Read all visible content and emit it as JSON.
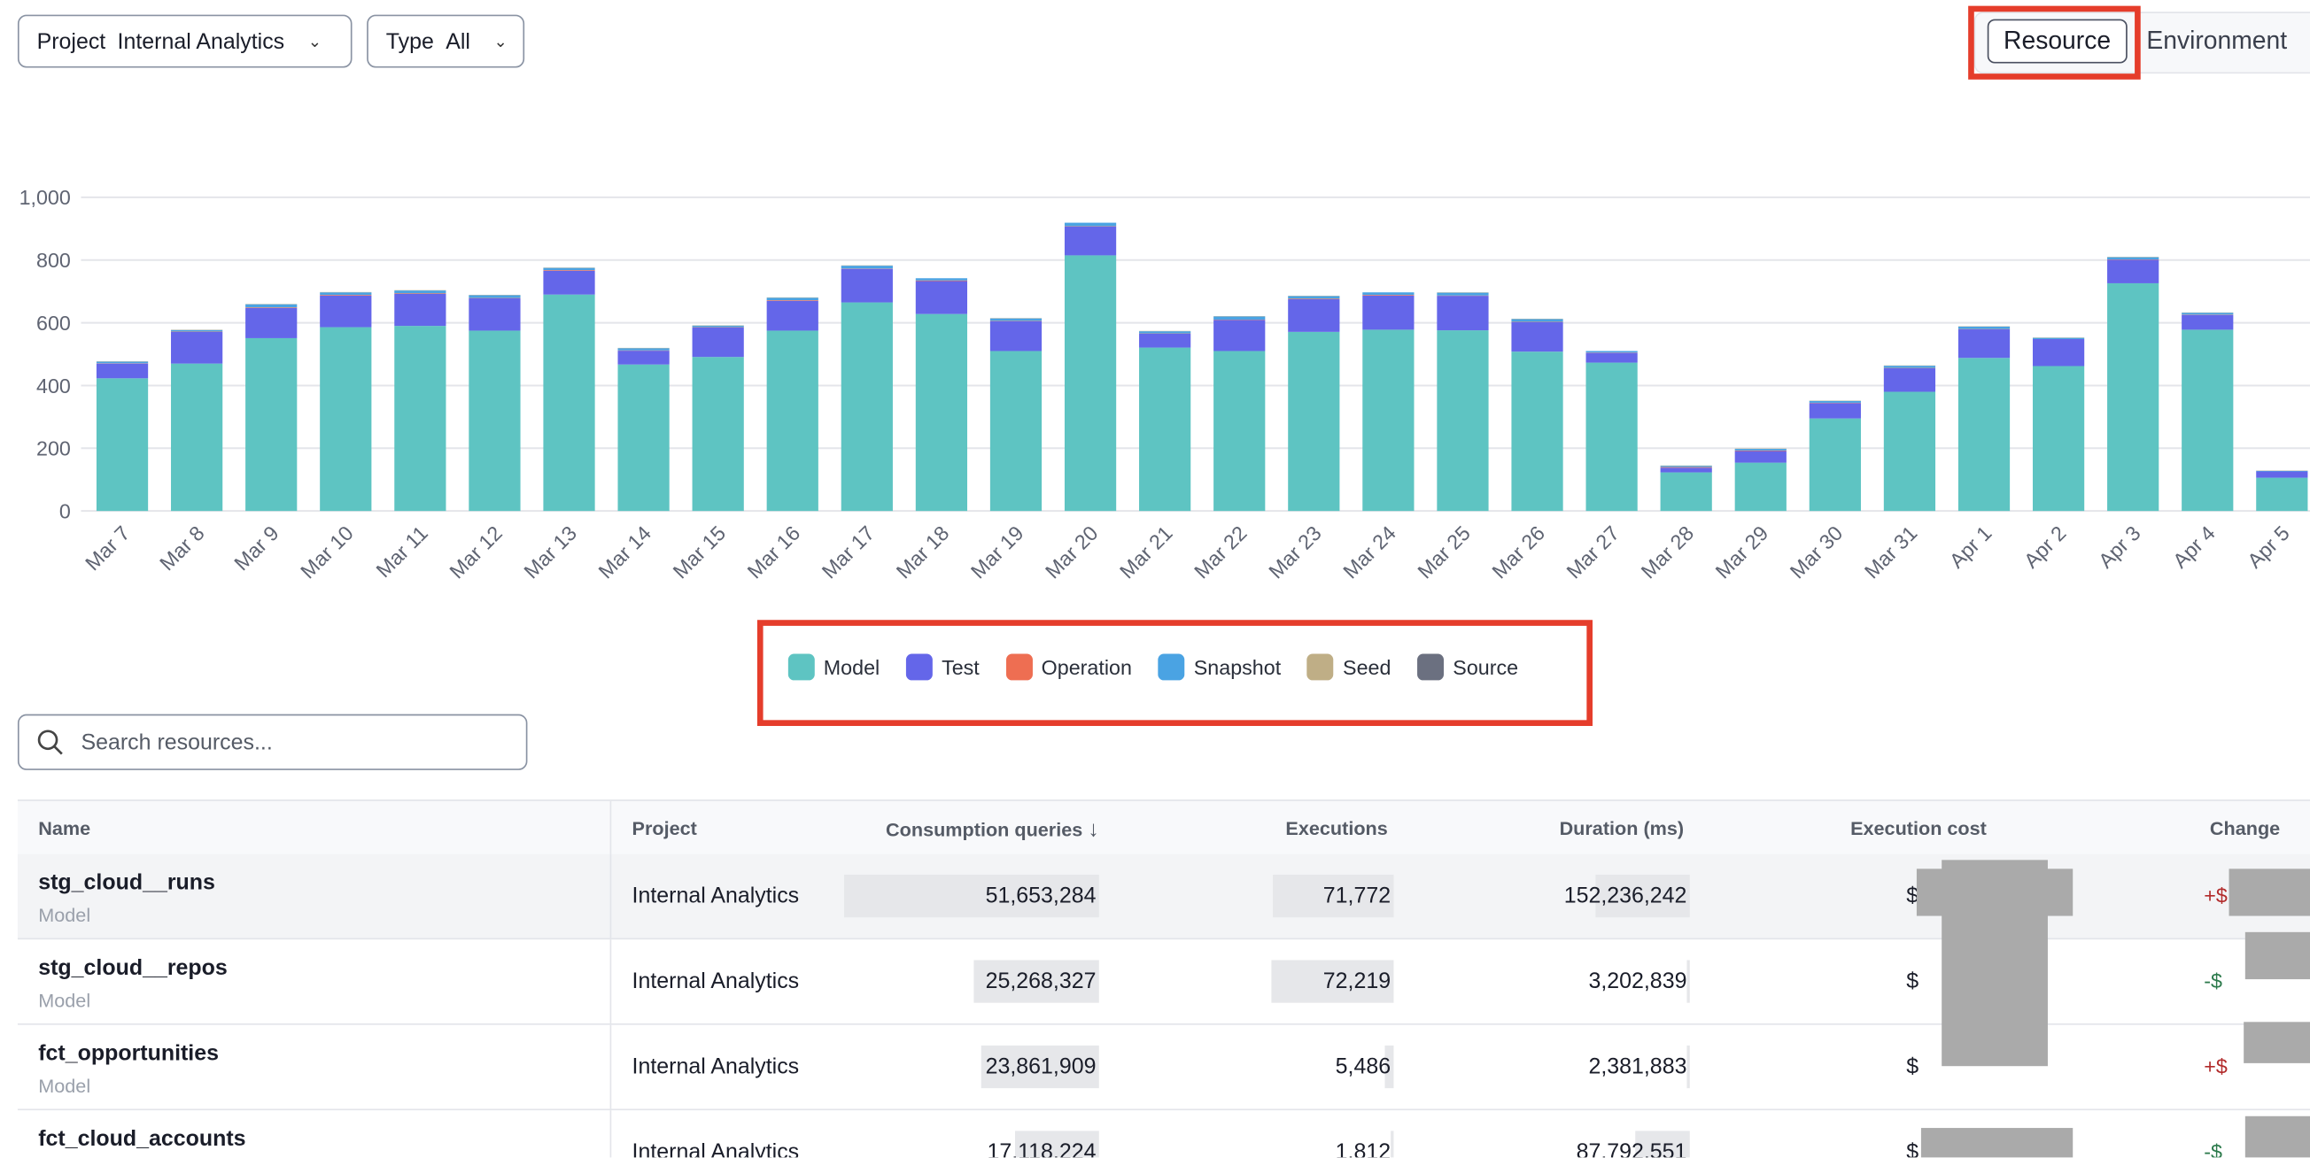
{
  "filters": {
    "project": {
      "label": "Project",
      "value": "Internal Analytics"
    },
    "type": {
      "label": "Type",
      "value": "All"
    }
  },
  "view_toggle": {
    "options": [
      "Resource",
      "Environment"
    ],
    "selected": "Resource"
  },
  "colors": {
    "Model": "#5ec4c2",
    "Test": "#6466e9",
    "Operation": "#ee6e52",
    "Snapshot": "#4aa3e3",
    "Seed": "#bfae86",
    "Source": "#6b7080",
    "annotation": "#e53d2b"
  },
  "chart_data": {
    "type": "bar",
    "stacked": true,
    "categories": [
      "Mar 7",
      "Mar 8",
      "Mar 9",
      "Mar 10",
      "Mar 11",
      "Mar 12",
      "Mar 13",
      "Mar 14",
      "Mar 15",
      "Mar 16",
      "Mar 17",
      "Mar 18",
      "Mar 19",
      "Mar 20",
      "Mar 21",
      "Mar 22",
      "Mar 23",
      "Mar 24",
      "Mar 25",
      "Mar 26",
      "Mar 27",
      "Mar 28",
      "Mar 29",
      "Mar 30",
      "Mar 31",
      "Apr 1",
      "Apr 2",
      "Apr 3",
      "Apr 4",
      "Apr 5"
    ],
    "series": [
      {
        "name": "Model",
        "values": [
          423,
          470,
          551,
          586,
          590,
          575,
          690,
          467,
          491,
          575,
          665,
          628,
          510,
          815,
          521,
          510,
          571,
          578,
          576,
          508,
          473,
          123,
          154,
          295,
          380,
          488,
          462,
          726,
          578,
          106
        ]
      },
      {
        "name": "Test",
        "values": [
          47,
          101,
          96,
          101,
          102,
          103,
          76,
          44,
          94,
          95,
          107,
          105,
          95,
          92,
          44,
          99,
          104,
          109,
          110,
          94,
          31,
          15,
          37,
          49,
          75,
          91,
          86,
          75,
          47,
          20
        ]
      },
      {
        "name": "Operation",
        "values": [
          1,
          1,
          2,
          2,
          2,
          1,
          2,
          1,
          1,
          2,
          1,
          2,
          1,
          1,
          1,
          1,
          2,
          2,
          1,
          1,
          1,
          2,
          2,
          1,
          1,
          1,
          0,
          1,
          1,
          0
        ]
      },
      {
        "name": "Snapshot",
        "values": [
          5,
          5,
          10,
          8,
          9,
          9,
          7,
          7,
          5,
          8,
          9,
          7,
          8,
          11,
          7,
          10,
          8,
          8,
          9,
          9,
          5,
          4,
          5,
          6,
          7,
          8,
          4,
          7,
          6,
          2
        ]
      },
      {
        "name": "Seed",
        "values": [
          1,
          1,
          1,
          1,
          1,
          1,
          1,
          1,
          1,
          1,
          1,
          0,
          1,
          0,
          1,
          1,
          1,
          0,
          1,
          1,
          0,
          1,
          1,
          1,
          1,
          1,
          1,
          1,
          1,
          1
        ]
      },
      {
        "name": "Source",
        "values": [
          0,
          0,
          0,
          0,
          0,
          0,
          0,
          0,
          0,
          0,
          0,
          0,
          0,
          0,
          0,
          0,
          0,
          0,
          0,
          0,
          0,
          0,
          0,
          0,
          0,
          0,
          0,
          0,
          0,
          0
        ]
      }
    ],
    "yticks": [
      "0",
      "200",
      "400",
      "600",
      "800",
      "1,000"
    ],
    "ylim": [
      0,
      1000
    ],
    "grid": true,
    "legend": "bottom-center"
  },
  "search": {
    "placeholder": "Search resources...",
    "value": ""
  },
  "table": {
    "columns": [
      "Name",
      "Project",
      "Consumption queries",
      "Executions",
      "Duration (ms)",
      "Execution cost",
      "Change"
    ],
    "sort_indicator": "↓",
    "rows": [
      {
        "name": "stg_cloud__runs",
        "type": "Model",
        "project": "Internal Analytics",
        "queries": "51,653,284",
        "queries_n": 51653284,
        "executions": "71,772",
        "executions_n": 71772,
        "duration": "152,236,242",
        "duration_n": 152236242,
        "cost": "$",
        "change": "+$",
        "change_dir": "up"
      },
      {
        "name": "stg_cloud__repos",
        "type": "Model",
        "project": "Internal Analytics",
        "queries": "25,268,327",
        "queries_n": 25268327,
        "executions": "72,219",
        "executions_n": 72219,
        "duration": "3,202,839",
        "duration_n": 3202839,
        "cost": "$",
        "change": "-$",
        "change_dir": "down"
      },
      {
        "name": "fct_opportunities",
        "type": "Model",
        "project": "Internal Analytics",
        "queries": "23,861,909",
        "queries_n": 23861909,
        "executions": "5,486",
        "executions_n": 5486,
        "duration": "2,381,883",
        "duration_n": 2381883,
        "cost": "$",
        "change": "+$",
        "change_dir": "up"
      },
      {
        "name": "fct_cloud_accounts",
        "type": "",
        "project": "Internal Analytics",
        "queries": "17,118,224",
        "queries_n": 17118224,
        "executions": "1,812",
        "executions_n": 1812,
        "duration": "87,792,551",
        "duration_n": 87792551,
        "cost": "$",
        "change": "-$",
        "change_dir": "down"
      }
    ]
  }
}
